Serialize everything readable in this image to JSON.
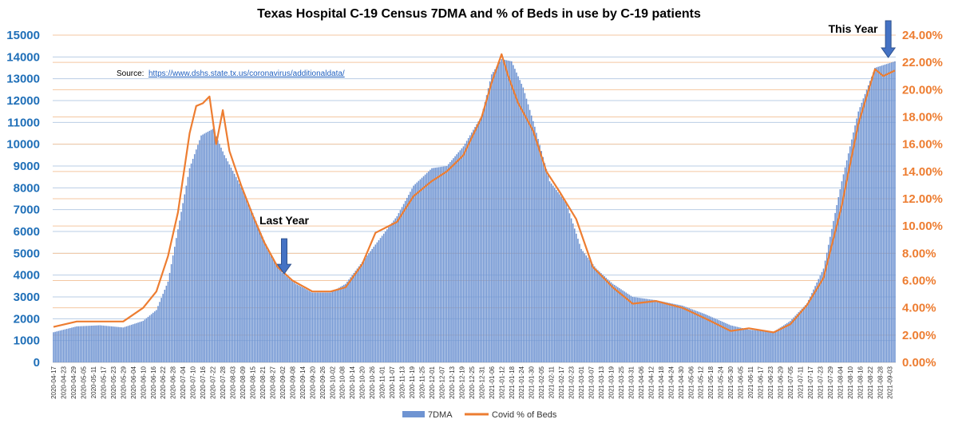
{
  "chart_data": {
    "type": "bar+line",
    "title_parts": [
      {
        "text": "Texas Hospital ",
        "color": "#595959"
      },
      {
        "text": "C-19 Census 7DMA",
        "color": "#1f6fb8"
      },
      {
        "text": " and ",
        "color": "#595959"
      },
      {
        "text": "% of Beds in use",
        "color": "#ed7d31"
      },
      {
        "text": " by C-19 patients",
        "color": "#595959"
      }
    ],
    "source_label": "Source:",
    "source_url": "https://www.dshs.state.tx.us/coronavirus/additionaldata/",
    "y_left": {
      "min": 0,
      "max": 15000,
      "ticks": [
        "0",
        "1000",
        "2000",
        "3000",
        "4000",
        "5000",
        "6000",
        "7000",
        "8000",
        "9000",
        "10000",
        "11000",
        "12000",
        "13000",
        "14000",
        "15000"
      ],
      "color": "#1f6fb8"
    },
    "y_right": {
      "min": 0,
      "max": 24,
      "ticks": [
        "0.00%",
        "2.00%",
        "4.00%",
        "6.00%",
        "8.00%",
        "10.00%",
        "12.00%",
        "14.00%",
        "16.00%",
        "18.00%",
        "20.00%",
        "22.00%",
        "24.00%"
      ],
      "color": "#ed7d31"
    },
    "x_start": "2020-04-17",
    "x_end": "2021-09-06",
    "x_tick_labels": [
      "2020-04-17",
      "2020-04-23",
      "2020-04-29",
      "2020-05-05",
      "2020-05-11",
      "2020-05-17",
      "2020-05-23",
      "2020-05-29",
      "2020-06-04",
      "2020-06-10",
      "2020-06-16",
      "2020-06-22",
      "2020-06-28",
      "2020-07-04",
      "2020-07-10",
      "2020-07-16",
      "2020-07-22",
      "2020-07-28",
      "2020-08-03",
      "2020-08-09",
      "2020-08-15",
      "2020-08-21",
      "2020-08-27",
      "2020-09-02",
      "2020-09-08",
      "2020-09-14",
      "2020-09-20",
      "2020-09-26",
      "2020-10-02",
      "2020-10-08",
      "2020-10-14",
      "2020-10-20",
      "2020-10-26",
      "2020-11-01",
      "2020-11-07",
      "2020-11-13",
      "2020-11-19",
      "2020-11-25",
      "2020-12-01",
      "2020-12-07",
      "2020-12-13",
      "2020-12-19",
      "2020-12-25",
      "2020-12-31",
      "2021-01-06",
      "2021-01-12",
      "2021-01-18",
      "2021-01-24",
      "2021-01-30",
      "2021-02-05",
      "2021-02-11",
      "2021-02-17",
      "2021-02-23",
      "2021-03-01",
      "2021-03-07",
      "2021-03-13",
      "2021-03-19",
      "2021-03-25",
      "2021-03-31",
      "2021-04-06",
      "2021-04-12",
      "2021-04-18",
      "2021-04-24",
      "2021-04-30",
      "2021-05-06",
      "2021-05-12",
      "2021-05-18",
      "2021-05-24",
      "2021-05-30",
      "2021-06-05",
      "2021-06-11",
      "2021-06-17",
      "2021-06-23",
      "2021-06-29",
      "2021-07-05",
      "2021-07-11",
      "2021-07-17",
      "2021-07-23",
      "2021-07-29",
      "2021-08-04",
      "2021-08-10",
      "2021-08-16",
      "2021-08-22",
      "2021-08-28",
      "2021-09-03"
    ],
    "series": [
      {
        "name": "7DMA",
        "kind": "bar",
        "axis": "left",
        "color": "#6f94d2",
        "points": [
          [
            "2020-04-17",
            1380
          ],
          [
            "2020-05-01",
            1650
          ],
          [
            "2020-05-15",
            1700
          ],
          [
            "2020-05-29",
            1600
          ],
          [
            "2020-06-10",
            1900
          ],
          [
            "2020-06-18",
            2400
          ],
          [
            "2020-06-25",
            3700
          ],
          [
            "2020-07-01",
            6100
          ],
          [
            "2020-07-08",
            8900
          ],
          [
            "2020-07-15",
            10400
          ],
          [
            "2020-07-22",
            10700
          ],
          [
            "2020-07-29",
            9500
          ],
          [
            "2020-08-05",
            8500
          ],
          [
            "2020-08-12",
            7400
          ],
          [
            "2020-08-19",
            6100
          ],
          [
            "2020-08-26",
            4900
          ],
          [
            "2020-09-02",
            4100
          ],
          [
            "2020-09-10",
            3600
          ],
          [
            "2020-09-20",
            3200
          ],
          [
            "2020-10-01",
            3200
          ],
          [
            "2020-10-10",
            3600
          ],
          [
            "2020-10-20",
            4600
          ],
          [
            "2020-11-01",
            5800
          ],
          [
            "2020-11-10",
            6700
          ],
          [
            "2020-11-20",
            8100
          ],
          [
            "2020-12-01",
            8900
          ],
          [
            "2020-12-10",
            9000
          ],
          [
            "2020-12-20",
            9900
          ],
          [
            "2020-12-31",
            11300
          ],
          [
            "2021-01-06",
            13200
          ],
          [
            "2021-01-12",
            13900
          ],
          [
            "2021-01-18",
            13800
          ],
          [
            "2021-01-25",
            12600
          ],
          [
            "2021-02-01",
            10800
          ],
          [
            "2021-02-10",
            8300
          ],
          [
            "2021-02-20",
            7300
          ],
          [
            "2021-03-01",
            5200
          ],
          [
            "2021-03-10",
            4300
          ],
          [
            "2021-03-20",
            3600
          ],
          [
            "2021-04-01",
            3000
          ],
          [
            "2021-04-15",
            2850
          ],
          [
            "2021-05-01",
            2600
          ],
          [
            "2021-05-15",
            2200
          ],
          [
            "2021-05-30",
            1700
          ],
          [
            "2021-06-10",
            1500
          ],
          [
            "2021-06-25",
            1400
          ],
          [
            "2021-07-05",
            1900
          ],
          [
            "2021-07-15",
            2700
          ],
          [
            "2021-07-25",
            4300
          ],
          [
            "2021-08-05",
            8300
          ],
          [
            "2021-08-15",
            11500
          ],
          [
            "2021-08-25",
            13500
          ],
          [
            "2021-09-06",
            13800
          ]
        ]
      },
      {
        "name": "Covid % of Beds",
        "kind": "line",
        "axis": "right",
        "color": "#ed7d31",
        "points": [
          [
            "2020-04-17",
            2.6
          ],
          [
            "2020-05-01",
            3.0
          ],
          [
            "2020-05-15",
            3.0
          ],
          [
            "2020-05-29",
            3.0
          ],
          [
            "2020-06-10",
            4.0
          ],
          [
            "2020-06-18",
            5.2
          ],
          [
            "2020-06-25",
            7.8
          ],
          [
            "2020-07-01",
            11.0
          ],
          [
            "2020-07-08",
            16.8
          ],
          [
            "2020-07-12",
            18.8
          ],
          [
            "2020-07-16",
            19.0
          ],
          [
            "2020-07-20",
            19.5
          ],
          [
            "2020-07-24",
            16.0
          ],
          [
            "2020-07-28",
            18.5
          ],
          [
            "2020-08-01",
            15.5
          ],
          [
            "2020-08-08",
            13.0
          ],
          [
            "2020-08-15",
            10.8
          ],
          [
            "2020-08-22",
            8.8
          ],
          [
            "2020-08-30",
            7.0
          ],
          [
            "2020-09-08",
            6.0
          ],
          [
            "2020-09-20",
            5.2
          ],
          [
            "2020-10-01",
            5.2
          ],
          [
            "2020-10-10",
            5.5
          ],
          [
            "2020-10-20",
            7.2
          ],
          [
            "2020-10-28",
            9.5
          ],
          [
            "2020-11-10",
            10.3
          ],
          [
            "2020-11-20",
            12.2
          ],
          [
            "2020-12-01",
            13.3
          ],
          [
            "2020-12-10",
            14.0
          ],
          [
            "2020-12-20",
            15.2
          ],
          [
            "2020-12-31",
            18.0
          ],
          [
            "2021-01-06",
            20.5
          ],
          [
            "2021-01-12",
            22.6
          ],
          [
            "2021-01-16",
            21.0
          ],
          [
            "2021-01-22",
            19.0
          ],
          [
            "2021-01-31",
            17.0
          ],
          [
            "2021-02-08",
            14.0
          ],
          [
            "2021-02-16",
            12.5
          ],
          [
            "2021-02-26",
            10.5
          ],
          [
            "2021-03-08",
            7.0
          ],
          [
            "2021-03-20",
            5.5
          ],
          [
            "2021-04-01",
            4.3
          ],
          [
            "2021-04-15",
            4.5
          ],
          [
            "2021-05-01",
            4.0
          ],
          [
            "2021-05-15",
            3.2
          ],
          [
            "2021-05-30",
            2.3
          ],
          [
            "2021-06-10",
            2.5
          ],
          [
            "2021-06-25",
            2.2
          ],
          [
            "2021-07-05",
            2.8
          ],
          [
            "2021-07-15",
            4.2
          ],
          [
            "2021-07-25",
            6.2
          ],
          [
            "2021-08-05",
            11.5
          ],
          [
            "2021-08-15",
            17.5
          ],
          [
            "2021-08-25",
            21.5
          ],
          [
            "2021-08-30",
            21.0
          ],
          [
            "2021-09-06",
            21.4
          ]
        ]
      }
    ],
    "annotations": [
      {
        "text": "Last Year",
        "date": "2020-09-03",
        "value": 6400
      },
      {
        "text": "This Year",
        "date": "2021-09-02",
        "value": 15000
      }
    ],
    "legend": {
      "position": "bottom",
      "items": [
        "7DMA",
        "Covid % of Beds"
      ]
    },
    "grid": {
      "left_axis": true,
      "right_axis": true
    }
  }
}
